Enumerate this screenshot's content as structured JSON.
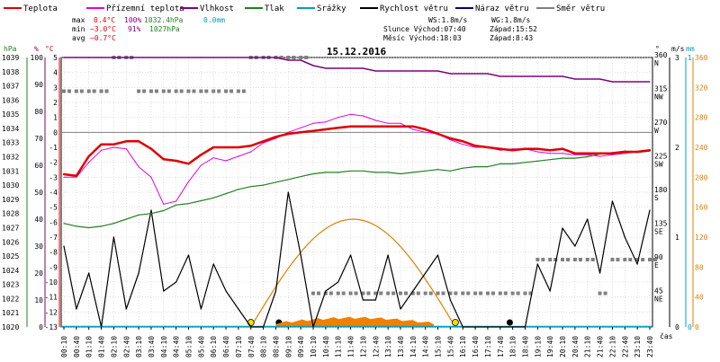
{
  "legend": [
    {
      "label": "Teplota",
      "color": "#e00000"
    },
    {
      "label": "Přízemní teplota",
      "color": "#e000e0"
    },
    {
      "label": "Vlhkost",
      "color": "#800080"
    },
    {
      "label": "Tlak",
      "color": "#208020"
    },
    {
      "label": "Srážky",
      "color": "#00a0c0"
    },
    {
      "label": "Rychlost větru",
      "color": "#000000"
    },
    {
      "label": "Náraz větru",
      "color": "#000080"
    },
    {
      "label": "Směr větru",
      "color": "#808080"
    }
  ],
  "stats": {
    "max_label": "max",
    "max_temp": "0.4°C",
    "max_hum": "100%",
    "max_press": "1032.4hPa",
    "max_rain": "0.0mm",
    "min_label": "min",
    "min_temp": "−3.0°C",
    "min_hum": "91%",
    "min_press": "1027hPa",
    "avg_label": "avg",
    "avg_temp": "−0.7°C"
  },
  "wind_info": {
    "ws": "WS:1.8m/s",
    "wg": "WG:1.8m/s"
  },
  "sun_info": {
    "rise": "Slunce Východ:07:40",
    "set": "Západ:15:52"
  },
  "moon_info": {
    "rise": "Měsíc  Východ:18:03",
    "set": "Západ:8:43"
  },
  "date_title": "15.12.2016",
  "x_axis_label": "čas",
  "colors": {
    "temp": "#e00000",
    "ground": "#e000e0",
    "humidity": "#800080",
    "pressure": "#208020",
    "rain": "#00a0c0",
    "wind": "#000000",
    "gust": "#000080",
    "dir": "#808080",
    "sun": "#e08000",
    "grid": "#c0c0c0"
  },
  "chart_data": {
    "type": "line",
    "title": "15.12.2016",
    "x_ticks": [
      "00:10",
      "00:40",
      "01:10",
      "01:40",
      "02:10",
      "02:40",
      "03:10",
      "03:40",
      "04:10",
      "04:40",
      "05:10",
      "05:40",
      "06:10",
      "06:40",
      "07:10",
      "07:40",
      "08:10",
      "08:40",
      "09:10",
      "09:40",
      "10:10",
      "10:40",
      "11:10",
      "11:40",
      "12:10",
      "12:40",
      "13:10",
      "13:40",
      "14:10",
      "14:40",
      "15:10",
      "15:40",
      "16:10",
      "16:40",
      "17:10",
      "17:40",
      "18:10",
      "18:40",
      "19:10",
      "19:40",
      "20:10",
      "20:40",
      "21:10",
      "21:40",
      "22:10",
      "22:40",
      "23:10",
      "23:40"
    ],
    "axes": {
      "pressure_hpa": {
        "min": 1020,
        "max": 1039,
        "ticks": [
          1020,
          1021,
          1022,
          1023,
          1024,
          1025,
          1026,
          1027,
          1028,
          1029,
          1030,
          1031,
          1032,
          1033,
          1034,
          1035,
          1036,
          1037,
          1038,
          1039
        ]
      },
      "humidity_pct": {
        "min": 0,
        "max": 100,
        "ticks": [
          0,
          10,
          20,
          30,
          40,
          50,
          60,
          70,
          80,
          90,
          100
        ]
      },
      "temperature_c": {
        "min": -13,
        "max": 5,
        "ticks": [
          -13,
          -12,
          -11,
          -10,
          -9,
          -8,
          -7,
          -6,
          -5,
          -4,
          -3,
          -2,
          -1,
          0,
          1,
          2,
          3,
          4,
          5
        ]
      },
      "wind_dir_deg": {
        "ticks": [
          0,
          45,
          90,
          135,
          180,
          225,
          270,
          315,
          360
        ],
        "labels": [
          "",
          "NE",
          "E",
          "SE",
          "S",
          "SW",
          "W",
          "NW",
          "N"
        ]
      },
      "wind_ms": {
        "min": 0,
        "max": 3,
        "ticks": [
          0,
          1,
          2,
          3
        ]
      },
      "rain_mm": {
        "ticks": [
          0,
          1
        ]
      },
      "sun_alt_axis": {
        "ticks": [
          0,
          40,
          80,
          120,
          160,
          200,
          240,
          280,
          320,
          360
        ]
      }
    },
    "series": [
      {
        "name": "Teplota",
        "unit": "°C",
        "values": [
          -2.8,
          -2.9,
          -1.6,
          -0.8,
          -0.8,
          -0.6,
          -0.6,
          -1.1,
          -1.8,
          -1.9,
          -2.1,
          -1.5,
          -1.0,
          -1.0,
          -1.0,
          -0.9,
          -0.6,
          -0.3,
          -0.1,
          0.0,
          0.1,
          0.2,
          0.3,
          0.4,
          0.4,
          0.4,
          0.4,
          0.4,
          0.4,
          0.2,
          -0.1,
          -0.4,
          -0.6,
          -0.9,
          -1.0,
          -1.1,
          -1.2,
          -1.1,
          -1.1,
          -1.2,
          -1.1,
          -1.4,
          -1.4,
          -1.4,
          -1.4,
          -1.3,
          -1.3,
          -1.2
        ]
      },
      {
        "name": "Přízemní teplota",
        "unit": "°C",
        "values": [
          -3.0,
          -3.0,
          -2.0,
          -1.2,
          -1.0,
          -1.1,
          -2.3,
          -3.0,
          -4.8,
          -4.6,
          -3.3,
          -2.2,
          -1.7,
          -1.9,
          -1.6,
          -1.3,
          -0.7,
          -0.4,
          0.0,
          0.3,
          0.6,
          0.7,
          1.0,
          1.2,
          1.1,
          0.8,
          0.6,
          0.6,
          0.2,
          0.0,
          -0.1,
          -0.5,
          -0.8,
          -1.0,
          -1.0,
          -1.2,
          -1.1,
          -1.1,
          -1.3,
          -1.4,
          -1.4,
          -1.5,
          -1.5,
          -1.6,
          -1.5,
          -1.4,
          -1.3,
          -1.2
        ]
      },
      {
        "name": "Vlhkost",
        "unit": "%",
        "values": [
          100,
          100,
          100,
          100,
          100,
          100,
          100,
          100,
          100,
          100,
          100,
          100,
          100,
          100,
          100,
          100,
          100,
          100,
          99,
          99,
          97,
          96,
          96,
          96,
          96,
          95,
          95,
          95,
          95,
          95,
          95,
          94,
          94,
          94,
          94,
          93,
          93,
          93,
          93,
          93,
          93,
          92,
          92,
          92,
          91,
          91,
          91,
          91
        ]
      },
      {
        "name": "Tlak",
        "unit": "hPa",
        "values": [
          1027.3,
          1027.1,
          1027.0,
          1027.1,
          1027.3,
          1027.6,
          1027.9,
          1028.0,
          1028.2,
          1028.6,
          1028.7,
          1028.9,
          1029.1,
          1029.4,
          1029.7,
          1029.9,
          1030.0,
          1030.2,
          1030.4,
          1030.6,
          1030.8,
          1030.9,
          1030.9,
          1031.0,
          1031.0,
          1030.9,
          1030.9,
          1030.8,
          1030.9,
          1031.0,
          1031.1,
          1031.0,
          1031.2,
          1031.3,
          1031.3,
          1031.5,
          1031.5,
          1031.6,
          1031.7,
          1031.8,
          1031.9,
          1031.9,
          1032.0,
          1032.2,
          1032.3,
          1032.4,
          1032.3,
          1032.4
        ]
      },
      {
        "name": "Rychlost větru",
        "unit": "m/s",
        "values": [
          0.9,
          0.2,
          0.6,
          0.0,
          1.0,
          0.2,
          0.6,
          1.3,
          0.4,
          0.5,
          0.8,
          0.2,
          0.7,
          0.4,
          0.2,
          0.0,
          0.0,
          0.4,
          1.5,
          0.8,
          0.0,
          0.4,
          0.5,
          0.8,
          0.3,
          0.3,
          0.8,
          0.2,
          0.4,
          0.6,
          0.8,
          0.3,
          0.0,
          0.0,
          0.0,
          0.0,
          0.0,
          0.0,
          0.7,
          0.4,
          1.1,
          0.9,
          1.2,
          0.6,
          1.4,
          1.0,
          0.7,
          1.3
        ]
      },
      {
        "name": "Směr větru",
        "unit": "°",
        "values": [
          315,
          315,
          315,
          315,
          360,
          360,
          315,
          315,
          315,
          315,
          315,
          315,
          315,
          315,
          315,
          360,
          360,
          360,
          360,
          360,
          45,
          45,
          45,
          45,
          45,
          45,
          45,
          45,
          45,
          45,
          45,
          45,
          45,
          45,
          45,
          45,
          45,
          45,
          90,
          90,
          90,
          90,
          90,
          45,
          90,
          90,
          90,
          90
        ]
      }
    ],
    "sun_elevation_profile": {
      "start": "07:40",
      "end": "15:52",
      "peak": "11:50"
    }
  }
}
